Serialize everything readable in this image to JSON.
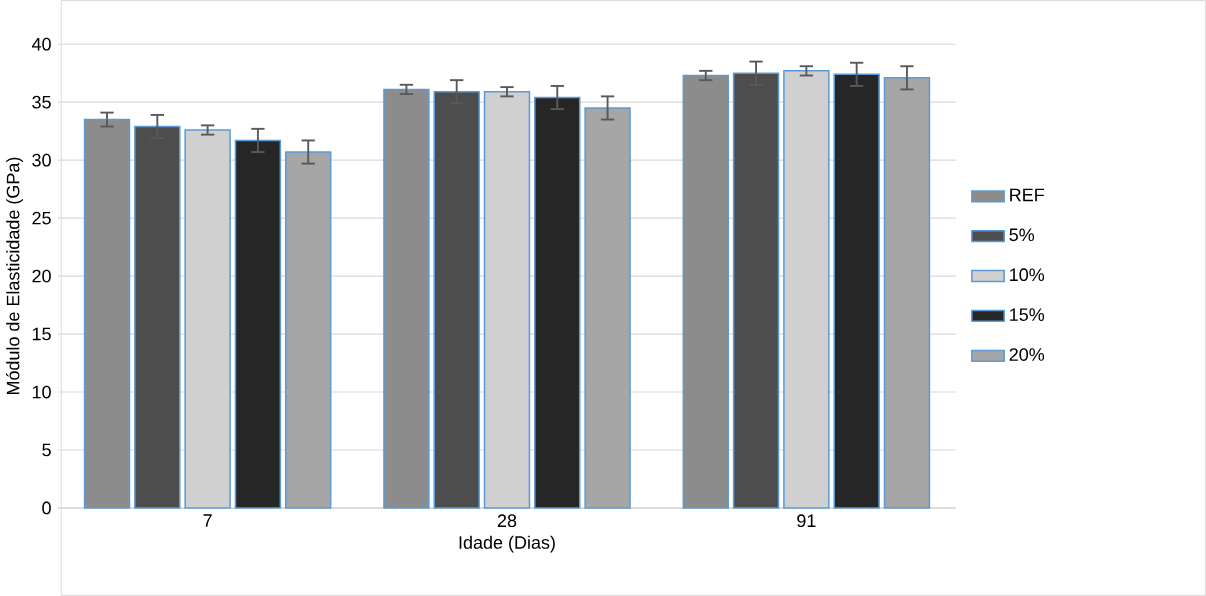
{
  "chart_data": {
    "type": "bar",
    "xlabel": "Idade (Dias)",
    "ylabel": "Módulo de Elasticidade (GPa)",
    "categories": [
      "7",
      "28",
      "91"
    ],
    "series": [
      {
        "name": "REF",
        "color": "#8c8c8c",
        "values": [
          33.5,
          36.1,
          37.3
        ],
        "errors": [
          0.6,
          0.4,
          0.4
        ]
      },
      {
        "name": "5%",
        "color": "#4d4d4d",
        "values": [
          32.9,
          35.9,
          37.5
        ],
        "errors": [
          1.0,
          1.0,
          1.0
        ]
      },
      {
        "name": "10%",
        "color": "#d0d0d0",
        "values": [
          32.6,
          35.9,
          37.7
        ],
        "errors": [
          0.4,
          0.4,
          0.4
        ]
      },
      {
        "name": "15%",
        "color": "#262626",
        "values": [
          31.7,
          35.4,
          37.4
        ],
        "errors": [
          1.0,
          1.0,
          1.0
        ]
      },
      {
        "name": "20%",
        "color": "#a6a6a6",
        "values": [
          30.7,
          34.5,
          37.1
        ],
        "errors": [
          1.0,
          1.0,
          1.0
        ]
      }
    ],
    "ylim": [
      0,
      40
    ],
    "yticks": [
      0,
      5,
      10,
      15,
      20,
      25,
      30,
      35,
      40
    ],
    "grid": "y",
    "legend": "right"
  }
}
